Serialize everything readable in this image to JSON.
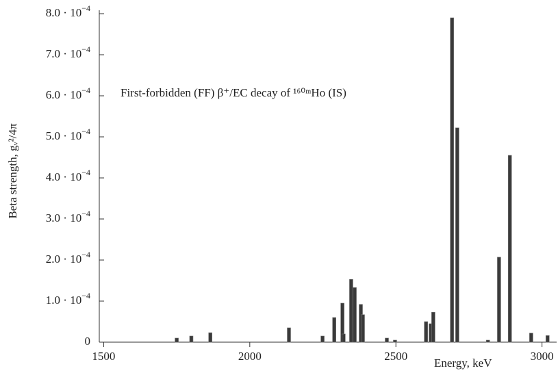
{
  "chart_data": {
    "type": "bar",
    "annotation": "First-forbidden (FF) β⁺/EC decay of ¹⁶⁰ᵐHo (IS)",
    "y_label": "Beta strength, gᵥ²/4π",
    "x_label": "Energy, keV",
    "color": "#3a3a3a",
    "x": [
      1750,
      1800,
      1865,
      2134,
      2249,
      2289,
      2317,
      2321,
      2347,
      2359,
      2380,
      2387,
      2469,
      2497,
      2603,
      2619,
      2628,
      2692,
      2710,
      2815,
      2853,
      2890,
      2963,
      3019
    ],
    "values": [
      1e-05,
      1.5e-05,
      2.3e-05,
      3.5e-05,
      1.5e-05,
      6e-05,
      9.5e-05,
      2e-05,
      0.000153,
      0.000133,
      9.2e-05,
      6.7e-05,
      1e-05,
      5e-06,
      5e-05,
      4.5e-05,
      7.3e-05,
      0.00079,
      0.000522,
      5e-06,
      0.000207,
      0.000455,
      2.2e-05,
      1.6e-05
    ],
    "xlim": [
      1485,
      3050
    ],
    "xticks": [
      1500,
      2000,
      2500,
      3000
    ],
    "ylim": [
      0,
      0.0008
    ],
    "yticks": [
      0,
      {
        "value": 0.0001,
        "label": "1.0 · 10−4"
      },
      {
        "value": 0.0002,
        "label": "2.0 · 10−4"
      },
      {
        "value": 0.0003,
        "label": "3.0 · 10−4"
      },
      {
        "value": 0.0004,
        "label": "4.0 · 10−4"
      },
      {
        "value": 0.0005,
        "label": "5.0 · 10−4"
      },
      {
        "value": 0.0006,
        "label": "6.0 · 10−4"
      },
      {
        "value": 0.0007,
        "label": "7.0 · 10−4"
      },
      {
        "value": 0.0008,
        "label": "8.0 · 10−4"
      }
    ]
  }
}
